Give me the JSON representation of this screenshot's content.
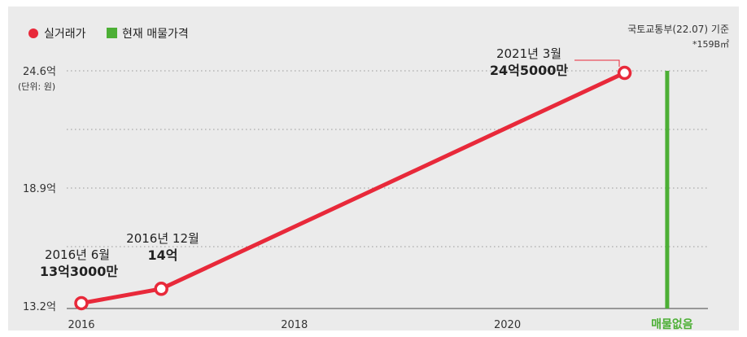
{
  "legend": [
    {
      "label": "실거래가",
      "color": "#e8293a",
      "shape": "circle"
    },
    {
      "label": "현재 매물가격",
      "color": "#4caf35",
      "shape": "square"
    }
  ],
  "source_note": "국토교통부(22.07) 기준",
  "area_note": "*159B㎡",
  "unit_note": "(단위: 원)",
  "colors": {
    "line": "#e8293a",
    "bar": "#4caf35",
    "grid": "#999999"
  },
  "chart_data": {
    "type": "line",
    "xlim": [
      2016,
      2021.6
    ],
    "ylim": [
      13.2,
      24.6
    ],
    "x_ticks": [
      2016,
      2018,
      2020
    ],
    "x_tick_labels": [
      "2016",
      "2018",
      "2020"
    ],
    "y_ticks": [
      13.2,
      18.9,
      24.6
    ],
    "y_tick_labels": [
      "13.2억",
      "18.9억",
      "24.6억"
    ],
    "grid": true,
    "legend_position": "top-left",
    "series": [
      {
        "name": "실거래가",
        "points": [
          {
            "x": 2016.0,
            "y": 13.3,
            "label": "2016년 6월",
            "value_label": "13억3000만"
          },
          {
            "x": 2016.75,
            "y": 14.0,
            "label": "2016년 12월",
            "value_label": "14억"
          },
          {
            "x": 2021.1,
            "y": 24.5,
            "label": "2021년 3월",
            "value_label": "24억5000만"
          }
        ]
      }
    ],
    "current_listing": {
      "name": "현재 매물가격",
      "x": 2021.5,
      "y": 24.6,
      "label": "매물없음"
    }
  }
}
